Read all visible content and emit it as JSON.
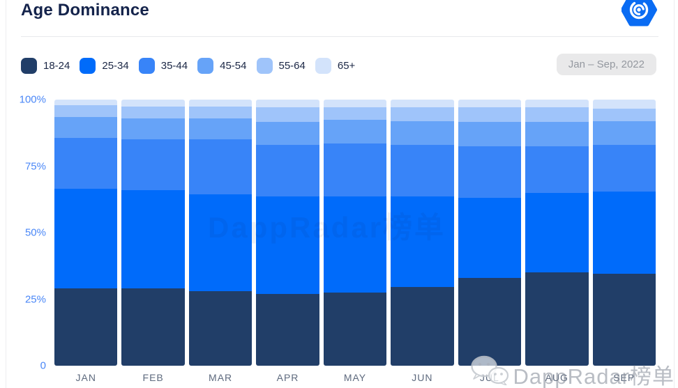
{
  "header": {
    "title": "Age Dominance",
    "period_label": "Jan – Sep, 2022",
    "logo": "dappradar-hexagon-radar",
    "brand_color": "#0a6cf3"
  },
  "legend": {
    "items": [
      {
        "label": "18-24",
        "color": "#213e68"
      },
      {
        "label": "25-34",
        "color": "#006bfa"
      },
      {
        "label": "35-44",
        "color": "#3884f8"
      },
      {
        "label": "45-54",
        "color": "#66a3f8"
      },
      {
        "label": "55-64",
        "color": "#9fc4fa"
      },
      {
        "label": "65+",
        "color": "#d3e3fb"
      }
    ]
  },
  "watermark": {
    "corner_icon": "wechat-icon",
    "corner_text": "DappRadar榜单",
    "center_text": "DappRadar榜单"
  },
  "chart_data": {
    "type": "bar",
    "stacked": true,
    "normalized_percent": true,
    "title": "Age Dominance",
    "xlabel": "",
    "ylabel": "",
    "ylim": [
      0,
      100
    ],
    "grid": false,
    "legend_position": "top",
    "axis_tick_color": "#4a87f7",
    "xtick_color": "#5e6a7e",
    "categories": [
      "JAN",
      "FEB",
      "MAR",
      "APR",
      "MAY",
      "JUN",
      "JUL",
      "AUG",
      "SEP"
    ],
    "yticks": [
      {
        "label": "100%",
        "value": 100
      },
      {
        "label": "75%",
        "value": 75
      },
      {
        "label": "50%",
        "value": 50
      },
      {
        "label": "25%",
        "value": 25
      },
      {
        "label": "0",
        "value": 0
      }
    ],
    "series": [
      {
        "name": "18-24",
        "color": "#213e68",
        "values": [
          29,
          29,
          28,
          27,
          27.5,
          29.5,
          33,
          35,
          34.5
        ]
      },
      {
        "name": "25-34",
        "color": "#006bfa",
        "values": [
          37.5,
          37,
          36.5,
          36.5,
          36,
          34,
          30,
          30,
          31
        ]
      },
      {
        "name": "35-44",
        "color": "#3884f8",
        "values": [
          19,
          19,
          20.5,
          19.5,
          20,
          19.5,
          19.5,
          17.5,
          17.5
        ]
      },
      {
        "name": "45-54",
        "color": "#66a3f8",
        "values": [
          8,
          8,
          8,
          8.5,
          9,
          9,
          9,
          9,
          9
        ]
      },
      {
        "name": "55-64",
        "color": "#9fc4fa",
        "values": [
          4.5,
          4.5,
          4.5,
          5.5,
          4.5,
          5,
          5.5,
          5.5,
          4.5
        ]
      },
      {
        "name": "65+",
        "color": "#d3e3fb",
        "values": [
          2,
          2.5,
          2.5,
          3,
          3,
          3,
          3,
          3,
          3.5
        ]
      }
    ]
  }
}
